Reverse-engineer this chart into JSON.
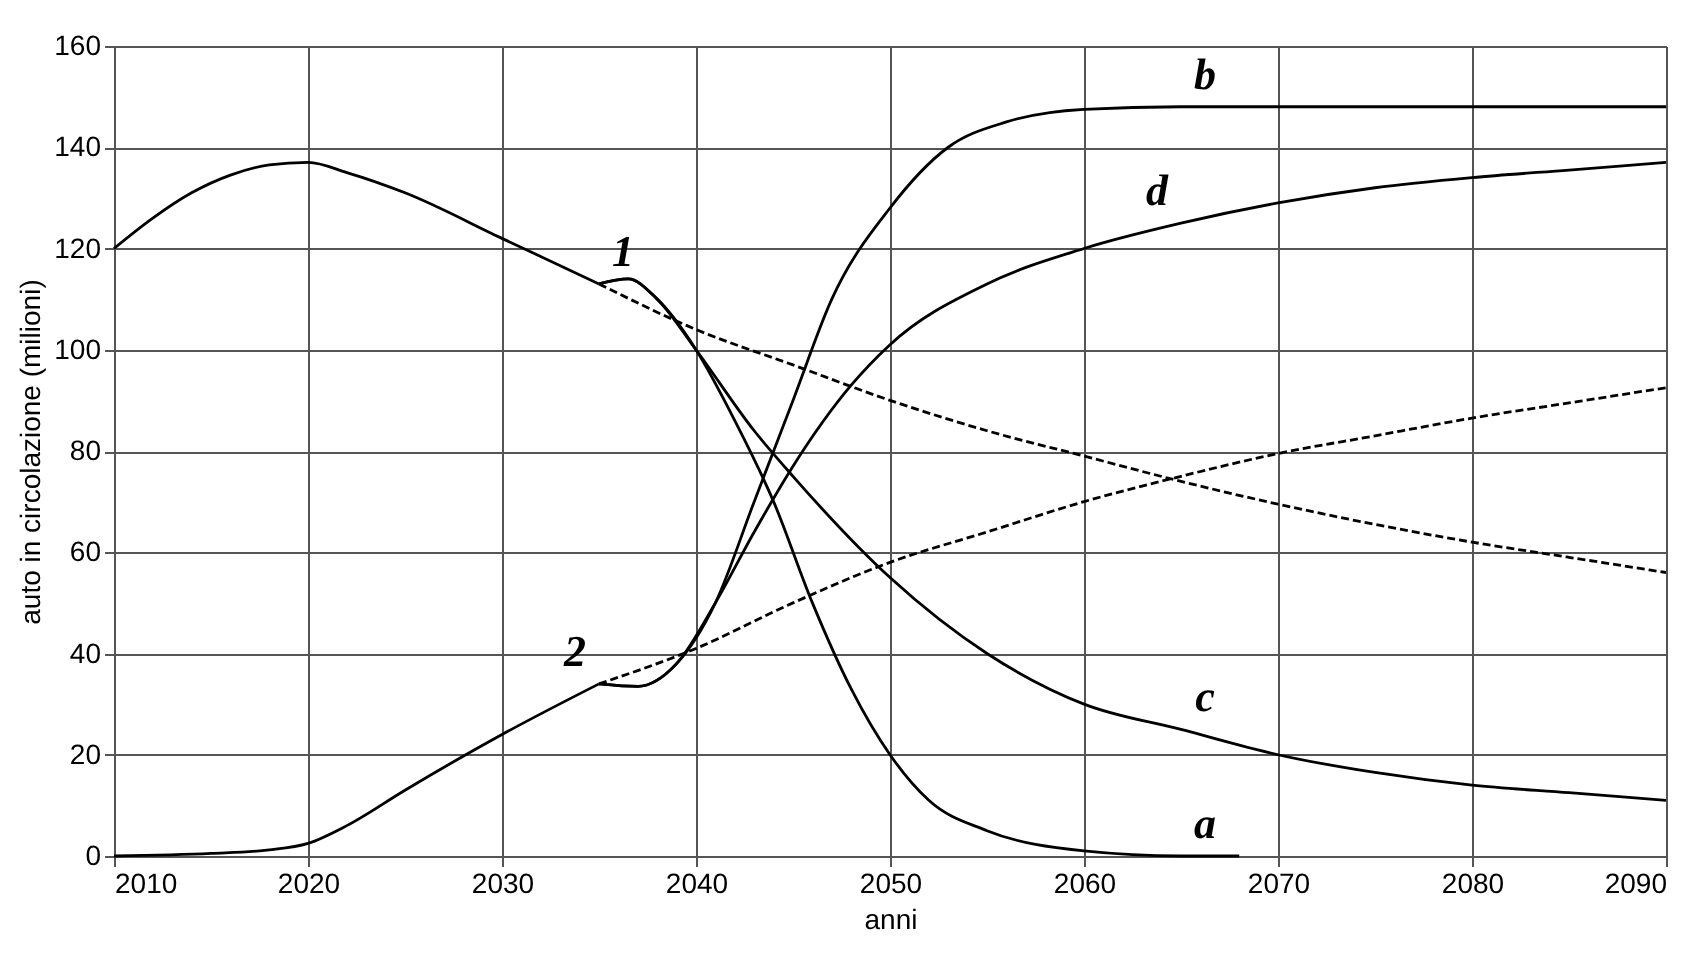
{
  "chart_data": {
    "type": "line",
    "xlabel": "anni",
    "ylabel": "auto in circolazione (milioni)",
    "xlim": [
      2010,
      2090
    ],
    "xticks": [
      2010,
      2020,
      2030,
      2040,
      2050,
      2060,
      2070,
      2080,
      2090
    ],
    "ylim": [
      0,
      160
    ],
    "yticks": [
      0,
      20,
      40,
      60,
      80,
      100,
      120,
      140,
      160
    ],
    "grid": true,
    "series": [
      {
        "name": "1",
        "color": "#000000",
        "line_style": "solid",
        "x": [
          2010,
          2012,
          2014,
          2016,
          2018,
          2020,
          2022,
          2025,
          2030,
          2035
        ],
        "values": [
          120,
          126,
          131,
          134.5,
          136.5,
          137,
          135,
          131,
          122,
          113
        ]
      },
      {
        "color": "#000000",
        "line_style": "dashed",
        "x": [
          2035,
          2040,
          2045,
          2050,
          2055,
          2060,
          2065,
          2070,
          2075,
          2080,
          2085,
          2090
        ],
        "values": [
          113,
          104,
          97,
          90,
          84,
          79,
          74,
          69.5,
          65.5,
          62,
          59,
          56
        ]
      },
      {
        "name": "a",
        "color": "#000000",
        "line_style": "solid",
        "x": [
          2035,
          2036.5,
          2038,
          2040,
          2042,
          2044,
          2046,
          2048,
          2050,
          2052,
          2055,
          2060,
          2065,
          2068
        ],
        "values": [
          113,
          114,
          110,
          100,
          86,
          70,
          50,
          33,
          20,
          11,
          5,
          1,
          0,
          0
        ]
      },
      {
        "name": "c",
        "color": "#000000",
        "line_style": "solid",
        "x": [
          2035,
          2036.5,
          2038,
          2040,
          2043,
          2045,
          2050,
          2055,
          2060,
          2065,
          2070,
          2075,
          2080,
          2085,
          2090
        ],
        "values": [
          113,
          114,
          110,
          100,
          84,
          75,
          55,
          40,
          30,
          25,
          20,
          16.5,
          14,
          12.5,
          11
        ]
      },
      {
        "name": "2",
        "color": "#000000",
        "line_style": "solid",
        "x": [
          2010,
          2015,
          2018,
          2020,
          2022,
          2025,
          2030,
          2035
        ],
        "values": [
          0,
          0.5,
          1.2,
          2.5,
          6,
          13,
          24,
          34
        ]
      },
      {
        "color": "#000000",
        "line_style": "dashed",
        "x": [
          2035,
          2040,
          2045,
          2050,
          2055,
          2060,
          2065,
          2070,
          2075,
          2080,
          2085,
          2090
        ],
        "values": [
          34,
          41,
          50,
          58,
          64,
          70,
          75,
          79.5,
          83,
          86.5,
          89.5,
          92.5
        ]
      },
      {
        "name": "b",
        "color": "#000000",
        "line_style": "solid",
        "x": [
          2035,
          2037,
          2039,
          2041,
          2043,
          2045,
          2047,
          2050,
          2053,
          2056,
          2060,
          2065,
          2090
        ],
        "values": [
          34,
          33.5,
          38,
          50,
          70,
          90,
          110,
          128,
          140,
          145,
          147.5,
          148,
          148
        ]
      },
      {
        "name": "d",
        "color": "#000000",
        "line_style": "solid",
        "x": [
          2035,
          2037,
          2039,
          2041,
          2043,
          2045,
          2048,
          2050,
          2055,
          2060,
          2065,
          2070,
          2075,
          2080,
          2085,
          2090
        ],
        "values": [
          34,
          33.5,
          38,
          50,
          64,
          77,
          93,
          101,
          113,
          120,
          125,
          129,
          132,
          134,
          135.5,
          137
        ]
      }
    ]
  }
}
